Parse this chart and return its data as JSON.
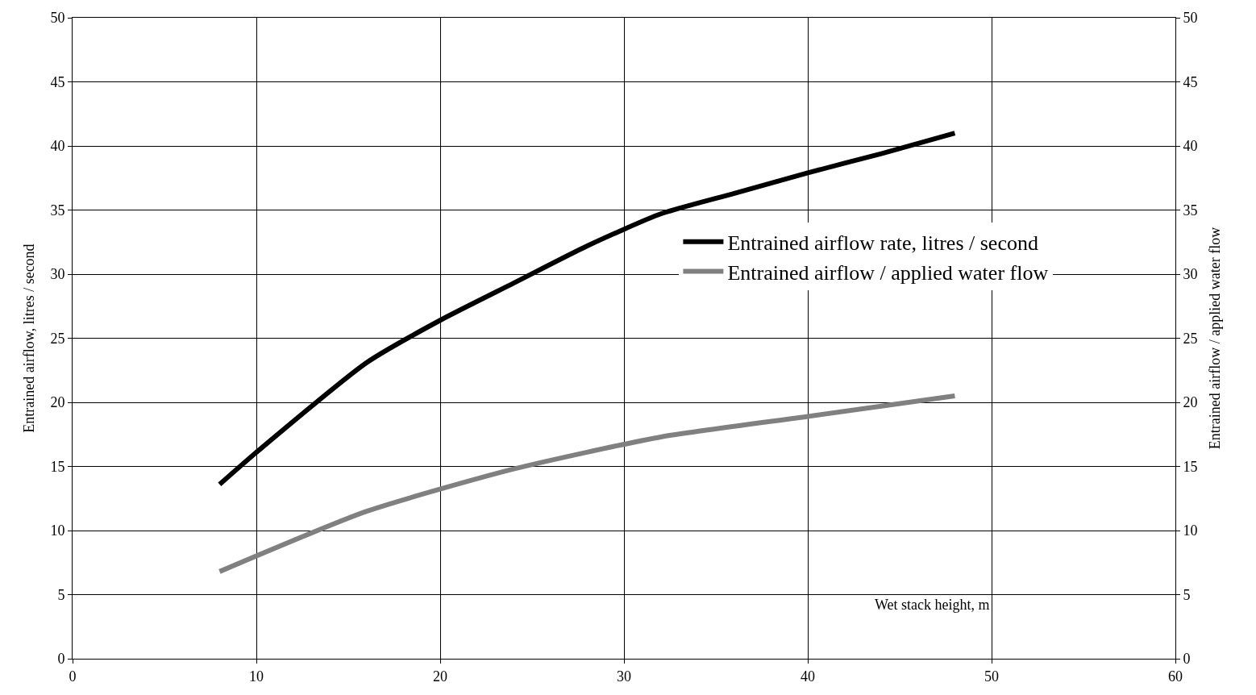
{
  "chart_data": {
    "type": "line",
    "xlabel": "Wet stack height, m",
    "ylabel": "Entrained airflow, litres / second",
    "y2label": "Entrained airflow / applied water flow",
    "xlim": [
      0,
      60
    ],
    "xticks": [
      0,
      10,
      20,
      30,
      40,
      50,
      60
    ],
    "ylim": [
      0,
      50
    ],
    "yticks": [
      0,
      5,
      10,
      15,
      20,
      25,
      30,
      35,
      40,
      45,
      50
    ],
    "y2lim": [
      0,
      50
    ],
    "y2ticks": [
      0,
      5,
      10,
      15,
      20,
      25,
      30,
      35,
      40,
      45,
      50
    ],
    "series": [
      {
        "name": "Entrained airflow rate, litres / second",
        "color": "#000000",
        "x": [
          8,
          10,
          16,
          20,
          24,
          28,
          32,
          36,
          40,
          44,
          48
        ],
        "values": [
          13.6,
          16.1,
          23.1,
          26.4,
          29.3,
          32.2,
          34.7,
          36.3,
          37.9,
          39.4,
          41.0
        ]
      },
      {
        "name": "Entrained airflow / applied water flow",
        "color": "#808080",
        "axis": "y2",
        "x": [
          8,
          16,
          24,
          32,
          40,
          48
        ],
        "values": [
          6.8,
          11.5,
          14.8,
          17.3,
          18.9,
          20.5
        ]
      }
    ],
    "grid": true,
    "legend": "right",
    "line_style": "solid",
    "marker": "none"
  }
}
